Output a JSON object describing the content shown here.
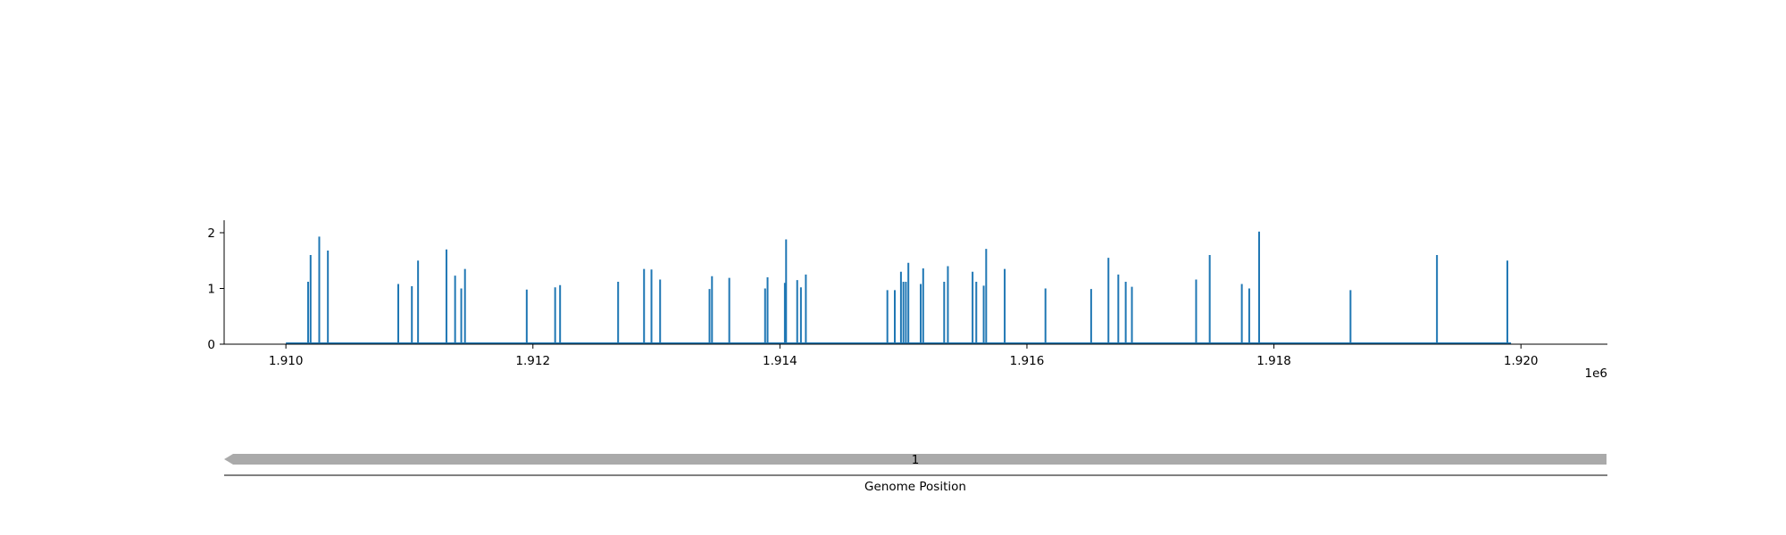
{
  "chart_data": {
    "type": "bar",
    "series_color": "#1f77b4",
    "feature_color": "#aaaaaa",
    "x_offset_label": "1e6",
    "xlim": [
      1909500,
      1920700
    ],
    "ylim": [
      0,
      2.2
    ],
    "x_ticks": [
      {
        "value": 1910000,
        "label": "1.910"
      },
      {
        "value": 1912000,
        "label": "1.912"
      },
      {
        "value": 1914000,
        "label": "1.914"
      },
      {
        "value": 1916000,
        "label": "1.916"
      },
      {
        "value": 1918000,
        "label": "1.918"
      },
      {
        "value": 1920000,
        "label": "1.920"
      }
    ],
    "y_ticks": [
      {
        "value": 0,
        "label": "0"
      },
      {
        "value": 1,
        "label": "1"
      },
      {
        "value": 2,
        "label": "2"
      }
    ],
    "baseline_range": [
      1910000,
      1919920
    ],
    "x": [
      1910180,
      1910200,
      1910270,
      1910340,
      1910910,
      1911020,
      1911070,
      1911300,
      1911370,
      1911420,
      1911450,
      1911950,
      1912180,
      1912220,
      1912690,
      1912900,
      1912960,
      1913030,
      1913430,
      1913450,
      1913590,
      1913880,
      1913900,
      1914040,
      1914050,
      1914140,
      1914170,
      1914210,
      1914870,
      1914930,
      1914980,
      1915000,
      1915020,
      1915040,
      1915140,
      1915160,
      1915330,
      1915360,
      1915560,
      1915590,
      1915650,
      1915670,
      1915820,
      1916150,
      1916520,
      1916660,
      1916740,
      1916800,
      1916850,
      1917370,
      1917480,
      1917740,
      1917800,
      1917880,
      1918620,
      1919320,
      1919890
    ],
    "values": [
      1.12,
      1.6,
      1.93,
      1.68,
      1.08,
      1.04,
      1.5,
      1.7,
      1.23,
      1.0,
      1.35,
      0.98,
      1.02,
      1.06,
      1.12,
      1.35,
      1.34,
      1.16,
      0.99,
      1.22,
      1.19,
      1.0,
      1.2,
      1.1,
      1.88,
      1.15,
      1.02,
      1.25,
      0.97,
      0.97,
      1.3,
      1.12,
      1.12,
      1.46,
      1.08,
      1.36,
      1.12,
      1.4,
      1.3,
      1.12,
      1.05,
      1.71,
      1.35,
      1.0,
      0.99,
      1.55,
      1.25,
      1.12,
      1.03,
      1.16,
      1.6,
      1.08,
      1.0,
      2.02,
      0.97,
      1.6,
      1.5
    ],
    "xlabel": "Genome Position",
    "feature": {
      "label": "1",
      "start": 1909500,
      "end": 1920700,
      "strand": "-"
    }
  }
}
